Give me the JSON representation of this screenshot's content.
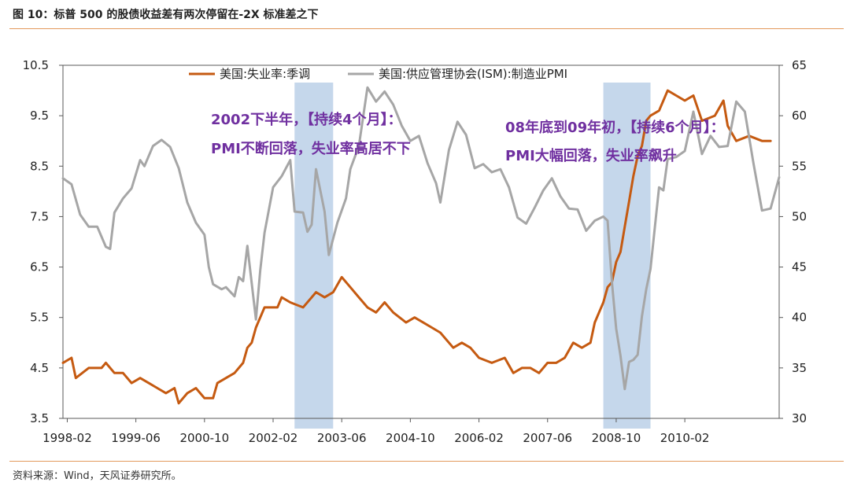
{
  "header": {
    "figure_title": "图 10：标普 500 的股债收益差有两次停留在-2X 标准差之下"
  },
  "footer": {
    "source": "资料来源：Wind，天风证券研究所。"
  },
  "colors": {
    "unemployment": "#c55a11",
    "pmi": "#a6a6a6",
    "shade": "#b7cde6",
    "annotation": "#7030a0",
    "rule": "#e39a5c"
  },
  "chart_data": {
    "type": "line",
    "x_ticks": [
      "1998-02",
      "1999-06",
      "2000-10",
      "2002-02",
      "2003-06",
      "2004-10",
      "2006-02",
      "2007-06",
      "2008-10",
      "2010-02"
    ],
    "x_range": [
      "1998-01",
      "2011-12"
    ],
    "y_left": {
      "ticks": [
        "3.5",
        "4.5",
        "5.5",
        "6.5",
        "7.5",
        "8.5",
        "9.5",
        "10.5"
      ],
      "range": [
        3.5,
        10.5
      ]
    },
    "y_right": {
      "ticks": [
        "30",
        "35",
        "40",
        "45",
        "50",
        "55",
        "60",
        "65"
      ],
      "range": [
        30,
        65
      ]
    },
    "legend": {
      "position": "top",
      "entries": [
        "美国:失业率:季调",
        "美国:供应管理协会(ISM):制造业PMI"
      ]
    },
    "shaded_periods": [
      {
        "start": "2002-07",
        "end": "2003-04"
      },
      {
        "start": "2008-07",
        "end": "2009-06"
      }
    ],
    "annotations": [
      {
        "lines": [
          "2002下半年，【持续4个月】：",
          "PMI不断回落，失业率高居不下"
        ]
      },
      {
        "lines": [
          "08年底到09年初，【持续6个月】：",
          "PMI大幅回落，失业率飙升"
        ]
      }
    ],
    "series": [
      {
        "name": "美国:失业率:季调",
        "axis": "left",
        "points": [
          [
            "1998-01",
            4.6
          ],
          [
            "1998-03",
            4.7
          ],
          [
            "1998-04",
            4.3
          ],
          [
            "1998-07",
            4.5
          ],
          [
            "1998-10",
            4.5
          ],
          [
            "1998-11",
            4.6
          ],
          [
            "1999-01",
            4.4
          ],
          [
            "1999-03",
            4.4
          ],
          [
            "1999-05",
            4.2
          ],
          [
            "1999-07",
            4.3
          ],
          [
            "1999-09",
            4.2
          ],
          [
            "1999-11",
            4.1
          ],
          [
            "2000-01",
            4.0
          ],
          [
            "2000-03",
            4.1
          ],
          [
            "2000-04",
            3.8
          ],
          [
            "2000-06",
            4.0
          ],
          [
            "2000-08",
            4.1
          ],
          [
            "2000-10",
            3.9
          ],
          [
            "2000-12",
            3.9
          ],
          [
            "2001-01",
            4.2
          ],
          [
            "2001-03",
            4.3
          ],
          [
            "2001-05",
            4.4
          ],
          [
            "2001-07",
            4.6
          ],
          [
            "2001-08",
            4.9
          ],
          [
            "2001-09",
            5.0
          ],
          [
            "2001-10",
            5.3
          ],
          [
            "2001-12",
            5.7
          ],
          [
            "2002-03",
            5.7
          ],
          [
            "2002-04",
            5.9
          ],
          [
            "2002-06",
            5.8
          ],
          [
            "2002-09",
            5.7
          ],
          [
            "2002-11",
            5.9
          ],
          [
            "2002-12",
            6.0
          ],
          [
            "2003-02",
            5.9
          ],
          [
            "2003-04",
            6.0
          ],
          [
            "2003-06",
            6.3
          ],
          [
            "2003-08",
            6.1
          ],
          [
            "2003-10",
            5.9
          ],
          [
            "2003-12",
            5.7
          ],
          [
            "2004-02",
            5.6
          ],
          [
            "2004-04",
            5.8
          ],
          [
            "2004-06",
            5.6
          ],
          [
            "2004-09",
            5.4
          ],
          [
            "2004-11",
            5.5
          ],
          [
            "2005-01",
            5.4
          ],
          [
            "2005-03",
            5.3
          ],
          [
            "2005-05",
            5.2
          ],
          [
            "2005-08",
            4.9
          ],
          [
            "2005-10",
            5.0
          ],
          [
            "2005-12",
            4.9
          ],
          [
            "2006-02",
            4.7
          ],
          [
            "2006-05",
            4.6
          ],
          [
            "2006-08",
            4.7
          ],
          [
            "2006-10",
            4.4
          ],
          [
            "2006-12",
            4.5
          ],
          [
            "2007-02",
            4.5
          ],
          [
            "2007-04",
            4.4
          ],
          [
            "2007-06",
            4.6
          ],
          [
            "2007-08",
            4.6
          ],
          [
            "2007-10",
            4.7
          ],
          [
            "2007-12",
            5.0
          ],
          [
            "2008-02",
            4.9
          ],
          [
            "2008-04",
            5.0
          ],
          [
            "2008-05",
            5.4
          ],
          [
            "2008-07",
            5.8
          ],
          [
            "2008-08",
            6.1
          ],
          [
            "2008-09",
            6.2
          ],
          [
            "2008-10",
            6.6
          ],
          [
            "2008-11",
            6.8
          ],
          [
            "2008-12",
            7.3
          ],
          [
            "2009-01",
            7.8
          ],
          [
            "2009-02",
            8.3
          ],
          [
            "2009-03",
            8.7
          ],
          [
            "2009-04",
            8.9
          ],
          [
            "2009-05",
            9.4
          ],
          [
            "2009-06",
            9.5
          ],
          [
            "2009-08",
            9.6
          ],
          [
            "2009-09",
            9.8
          ],
          [
            "2009-10",
            10.0
          ],
          [
            "2009-12",
            9.9
          ],
          [
            "2010-02",
            9.8
          ],
          [
            "2010-04",
            9.9
          ],
          [
            "2010-06",
            9.4
          ],
          [
            "2010-09",
            9.5
          ],
          [
            "2010-11",
            9.8
          ],
          [
            "2010-12",
            9.3
          ],
          [
            "2011-02",
            9.0
          ],
          [
            "2011-05",
            9.1
          ],
          [
            "2011-08",
            9.0
          ],
          [
            "2011-10",
            9.0
          ]
        ]
      },
      {
        "name": "美国:供应管理协会(ISM):制造业PMI",
        "axis": "right",
        "points": [
          [
            "1998-01",
            53.8
          ],
          [
            "1998-03",
            53.2
          ],
          [
            "1998-05",
            50.2
          ],
          [
            "1998-07",
            49.0
          ],
          [
            "1998-09",
            49.0
          ],
          [
            "1998-11",
            47.0
          ],
          [
            "1998-12",
            46.8
          ],
          [
            "1999-01",
            50.4
          ],
          [
            "1999-03",
            51.8
          ],
          [
            "1999-05",
            52.8
          ],
          [
            "1999-07",
            55.6
          ],
          [
            "1999-08",
            55.0
          ],
          [
            "1999-10",
            57.0
          ],
          [
            "1999-12",
            57.6
          ],
          [
            "2000-02",
            56.9
          ],
          [
            "2000-04",
            54.8
          ],
          [
            "2000-06",
            51.4
          ],
          [
            "2000-08",
            49.4
          ],
          [
            "2000-10",
            48.2
          ],
          [
            "2000-11",
            45.0
          ],
          [
            "2000-12",
            43.3
          ],
          [
            "2001-02",
            42.8
          ],
          [
            "2001-03",
            43.0
          ],
          [
            "2001-05",
            42.1
          ],
          [
            "2001-06",
            44.0
          ],
          [
            "2001-07",
            43.6
          ],
          [
            "2001-08",
            47.1
          ],
          [
            "2001-10",
            39.8
          ],
          [
            "2001-11",
            44.7
          ],
          [
            "2001-12",
            48.4
          ],
          [
            "2002-02",
            52.9
          ],
          [
            "2002-04",
            54.0
          ],
          [
            "2002-06",
            55.6
          ],
          [
            "2002-07",
            50.5
          ],
          [
            "2002-09",
            50.4
          ],
          [
            "2002-10",
            48.5
          ],
          [
            "2002-11",
            49.2
          ],
          [
            "2002-12",
            54.7
          ],
          [
            "2003-02",
            50.5
          ],
          [
            "2003-03",
            46.2
          ],
          [
            "2003-05",
            49.4
          ],
          [
            "2003-07",
            51.8
          ],
          [
            "2003-08",
            54.7
          ],
          [
            "2003-10",
            57.0
          ],
          [
            "2003-12",
            62.8
          ],
          [
            "2004-02",
            61.4
          ],
          [
            "2004-04",
            62.4
          ],
          [
            "2004-06",
            61.1
          ],
          [
            "2004-08",
            59.0
          ],
          [
            "2004-10",
            57.5
          ],
          [
            "2004-12",
            58.0
          ],
          [
            "2005-02",
            55.3
          ],
          [
            "2005-04",
            53.3
          ],
          [
            "2005-05",
            51.4
          ],
          [
            "2005-07",
            56.6
          ],
          [
            "2005-09",
            59.4
          ],
          [
            "2005-11",
            58.1
          ],
          [
            "2006-01",
            54.8
          ],
          [
            "2006-03",
            55.2
          ],
          [
            "2006-05",
            54.4
          ],
          [
            "2006-07",
            54.7
          ],
          [
            "2006-09",
            52.9
          ],
          [
            "2006-11",
            49.9
          ],
          [
            "2007-01",
            49.3
          ],
          [
            "2007-03",
            50.9
          ],
          [
            "2007-05",
            52.6
          ],
          [
            "2007-07",
            53.8
          ],
          [
            "2007-09",
            52.0
          ],
          [
            "2007-11",
            50.8
          ],
          [
            "2008-01",
            50.7
          ],
          [
            "2008-03",
            48.6
          ],
          [
            "2008-05",
            49.6
          ],
          [
            "2008-07",
            50.0
          ],
          [
            "2008-08",
            49.6
          ],
          [
            "2008-09",
            43.5
          ],
          [
            "2008-10",
            38.9
          ],
          [
            "2008-11",
            36.2
          ],
          [
            "2008-12",
            32.9
          ],
          [
            "2009-01",
            35.6
          ],
          [
            "2009-02",
            35.8
          ],
          [
            "2009-03",
            36.3
          ],
          [
            "2009-04",
            40.1
          ],
          [
            "2009-05",
            42.8
          ],
          [
            "2009-06",
            44.8
          ],
          [
            "2009-07",
            48.9
          ],
          [
            "2009-08",
            52.9
          ],
          [
            "2009-09",
            52.6
          ],
          [
            "2009-10",
            55.7
          ],
          [
            "2009-12",
            55.9
          ],
          [
            "2010-02",
            56.5
          ],
          [
            "2010-04",
            60.4
          ],
          [
            "2010-06",
            56.2
          ],
          [
            "2010-08",
            58.0
          ],
          [
            "2010-10",
            56.9
          ],
          [
            "2010-12",
            57.0
          ],
          [
            "2011-02",
            61.4
          ],
          [
            "2011-04",
            60.4
          ],
          [
            "2011-06",
            55.3
          ],
          [
            "2011-08",
            50.6
          ],
          [
            "2011-10",
            50.8
          ],
          [
            "2011-12",
            53.9
          ]
        ]
      }
    ]
  }
}
